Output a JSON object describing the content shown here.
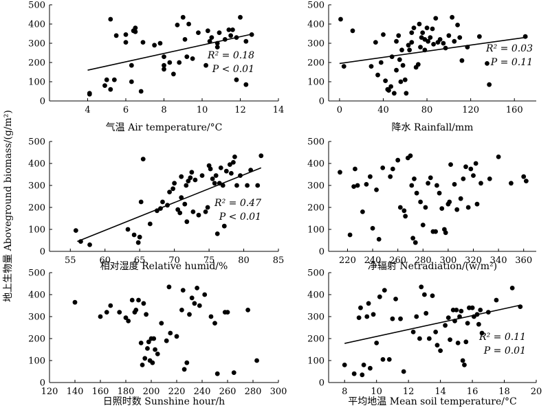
{
  "figure": {
    "ylabel": "地上生物量 Aboveground biomass/(g/m²)"
  },
  "chart_data": [
    {
      "type": "scatter",
      "xlabel": "气温  Air temperature/°C",
      "xlim": [
        2,
        14
      ],
      "ylim": [
        0,
        500
      ],
      "xticks": [
        4,
        6,
        8,
        10,
        12,
        14
      ],
      "yticks": [
        0,
        100,
        200,
        300,
        400,
        500
      ],
      "stats": {
        "r2_label": "R² = 0.18",
        "p_label": "P < 0.01"
      },
      "fit": {
        "x": [
          4.0,
          12.5
        ],
        "y": [
          160,
          345
        ]
      },
      "points": [
        [
          4.1,
          40
        ],
        [
          4.1,
          35
        ],
        [
          4.9,
          80
        ],
        [
          5.0,
          110
        ],
        [
          5.2,
          425
        ],
        [
          5.2,
          60
        ],
        [
          5.4,
          110
        ],
        [
          5.5,
          340
        ],
        [
          6.0,
          305
        ],
        [
          6.0,
          345
        ],
        [
          6.3,
          185
        ],
        [
          6.3,
          100
        ],
        [
          6.4,
          365
        ],
        [
          6.5,
          380
        ],
        [
          6.5,
          360
        ],
        [
          6.8,
          50
        ],
        [
          6.9,
          305
        ],
        [
          7.5,
          290
        ],
        [
          7.8,
          300
        ],
        [
          8.0,
          230
        ],
        [
          8.0,
          185
        ],
        [
          8.0,
          165
        ],
        [
          8.3,
          200
        ],
        [
          8.5,
          140
        ],
        [
          8.7,
          395
        ],
        [
          8.8,
          200
        ],
        [
          9.0,
          435
        ],
        [
          9.1,
          320
        ],
        [
          9.2,
          230
        ],
        [
          9.3,
          400
        ],
        [
          9.5,
          220
        ],
        [
          9.8,
          355
        ],
        [
          10.2,
          185
        ],
        [
          10.3,
          365
        ],
        [
          10.4,
          310
        ],
        [
          10.5,
          330
        ],
        [
          10.8,
          300
        ],
        [
          10.8,
          280
        ],
        [
          10.9,
          355
        ],
        [
          11.2,
          320
        ],
        [
          11.4,
          370
        ],
        [
          11.5,
          340
        ],
        [
          11.6,
          370
        ],
        [
          11.8,
          330
        ],
        [
          11.8,
          110
        ],
        [
          12.0,
          435
        ],
        [
          12.3,
          310
        ],
        [
          12.3,
          85
        ],
        [
          12.6,
          345
        ]
      ]
    },
    {
      "type": "scatter",
      "xlabel": "降水  Rainfall/mm",
      "xlim": [
        -10,
        180
      ],
      "ylim": [
        0,
        500
      ],
      "xticks": [
        0,
        40,
        80,
        120,
        160
      ],
      "yticks": [
        0,
        100,
        200,
        300,
        400,
        500
      ],
      "stats": {
        "r2_label": "R² = 0.03",
        "p_label": "P = 0.11"
      },
      "fit": {
        "x": [
          0,
          172
        ],
        "y": [
          195,
          332
        ]
      },
      "points": [
        [
          1,
          425
        ],
        [
          4,
          180
        ],
        [
          12,
          365
        ],
        [
          29,
          180
        ],
        [
          33,
          305
        ],
        [
          35,
          135
        ],
        [
          38,
          200
        ],
        [
          40,
          345
        ],
        [
          42,
          105
        ],
        [
          44,
          60
        ],
        [
          45,
          55
        ],
        [
          47,
          75
        ],
        [
          48,
          230
        ],
        [
          50,
          40
        ],
        [
          52,
          310
        ],
        [
          52,
          160
        ],
        [
          54,
          340
        ],
        [
          55,
          215
        ],
        [
          56,
          100
        ],
        [
          57,
          265
        ],
        [
          58,
          185
        ],
        [
          60,
          110
        ],
        [
          61,
          40
        ],
        [
          63,
          290
        ],
        [
          64,
          265
        ],
        [
          66,
          355
        ],
        [
          66,
          305
        ],
        [
          68,
          380
        ],
        [
          70,
          175
        ],
        [
          72,
          190
        ],
        [
          73,
          400
        ],
        [
          74,
          280
        ],
        [
          75,
          330
        ],
        [
          76,
          355
        ],
        [
          78,
          320
        ],
        [
          78,
          265
        ],
        [
          80,
          380
        ],
        [
          81,
          310
        ],
        [
          83,
          330
        ],
        [
          85,
          375
        ],
        [
          86,
          295
        ],
        [
          88,
          430
        ],
        [
          90,
          305
        ],
        [
          92,
          320
        ],
        [
          95,
          300
        ],
        [
          97,
          275
        ],
        [
          100,
          340
        ],
        [
          103,
          435
        ],
        [
          105,
          310
        ],
        [
          108,
          395
        ],
        [
          110,
          330
        ],
        [
          112,
          210
        ],
        [
          117,
          280
        ],
        [
          128,
          335
        ],
        [
          135,
          195
        ],
        [
          137,
          85
        ],
        [
          170,
          335
        ]
      ]
    },
    {
      "type": "scatter",
      "xlabel": "相对湿度  Relative humid/%",
      "xlim": [
        52,
        85
      ],
      "ylim": [
        0,
        500
      ],
      "xticks": [
        55,
        60,
        65,
        70,
        75,
        80,
        85
      ],
      "yticks": [
        0,
        100,
        200,
        300,
        400,
        500
      ],
      "stats": {
        "r2_label": "R² = 0.47",
        "p_label": "P < 0.01"
      },
      "fit": {
        "x": [
          56,
          82.5
        ],
        "y": [
          45,
          380
        ]
      },
      "points": [
        [
          55.8,
          95
        ],
        [
          56.5,
          45
        ],
        [
          57.8,
          30
        ],
        [
          63.3,
          100
        ],
        [
          64.2,
          75
        ],
        [
          64.8,
          40
        ],
        [
          65.0,
          65
        ],
        [
          65.2,
          225
        ],
        [
          65.5,
          420
        ],
        [
          66.5,
          125
        ],
        [
          67.5,
          185
        ],
        [
          68.0,
          195
        ],
        [
          68.3,
          225
        ],
        [
          69.0,
          210
        ],
        [
          69.3,
          270
        ],
        [
          69.8,
          285
        ],
        [
          70.0,
          310
        ],
        [
          70.5,
          190
        ],
        [
          70.8,
          175
        ],
        [
          71.0,
          340
        ],
        [
          71.0,
          245
        ],
        [
          71.5,
          215
        ],
        [
          71.7,
          300
        ],
        [
          71.8,
          135
        ],
        [
          72.0,
          320
        ],
        [
          72.3,
          335
        ],
        [
          72.5,
          360
        ],
        [
          72.7,
          180
        ],
        [
          73.0,
          325
        ],
        [
          73.5,
          165
        ],
        [
          74.0,
          345
        ],
        [
          74.5,
          180
        ],
        [
          74.8,
          200
        ],
        [
          75.0,
          390
        ],
        [
          75.2,
          375
        ],
        [
          75.5,
          330
        ],
        [
          75.8,
          310
        ],
        [
          76.0,
          345
        ],
        [
          76.2,
          80
        ],
        [
          76.5,
          310
        ],
        [
          76.7,
          380
        ],
        [
          77.0,
          300
        ],
        [
          77.2,
          115
        ],
        [
          77.5,
          365
        ],
        [
          78.0,
          395
        ],
        [
          78.2,
          355
        ],
        [
          78.5,
          405
        ],
        [
          78.7,
          430
        ],
        [
          79.0,
          300
        ],
        [
          79.5,
          345
        ],
        [
          80.5,
          300
        ],
        [
          81.0,
          370
        ],
        [
          82.0,
          300
        ],
        [
          82.5,
          435
        ]
      ]
    },
    {
      "type": "scatter",
      "xlabel": "净辐射  Netradiation/(w/m²)",
      "xlim": [
        205,
        370
      ],
      "ylim": [
        0,
        500
      ],
      "xticks": [
        220,
        240,
        260,
        280,
        300,
        320,
        340,
        360
      ],
      "yticks": [
        0,
        100,
        200,
        300,
        400,
        500
      ],
      "points": [
        [
          214,
          360
        ],
        [
          222,
          75
        ],
        [
          225,
          295
        ],
        [
          226,
          375
        ],
        [
          228,
          300
        ],
        [
          232,
          180
        ],
        [
          235,
          305
        ],
        [
          238,
          340
        ],
        [
          240,
          105
        ],
        [
          243,
          280
        ],
        [
          245,
          55
        ],
        [
          248,
          380
        ],
        [
          254,
          340
        ],
        [
          256,
          375
        ],
        [
          260,
          415
        ],
        [
          262,
          200
        ],
        [
          265,
          185
        ],
        [
          266,
          160
        ],
        [
          268,
          425
        ],
        [
          270,
          435
        ],
        [
          271,
          300
        ],
        [
          272,
          60
        ],
        [
          273,
          330
        ],
        [
          274,
          40
        ],
        [
          275,
          265
        ],
        [
          278,
          225
        ],
        [
          280,
          120
        ],
        [
          282,
          200
        ],
        [
          284,
          310
        ],
        [
          286,
          335
        ],
        [
          288,
          90
        ],
        [
          290,
          90
        ],
        [
          291,
          300
        ],
        [
          293,
          265
        ],
        [
          295,
          195
        ],
        [
          297,
          100
        ],
        [
          298,
          85
        ],
        [
          300,
          215
        ],
        [
          301,
          225
        ],
        [
          302,
          395
        ],
        [
          305,
          305
        ],
        [
          307,
          190
        ],
        [
          310,
          240
        ],
        [
          312,
          330
        ],
        [
          314,
          385
        ],
        [
          316,
          200
        ],
        [
          318,
          375
        ],
        [
          320,
          345
        ],
        [
          322,
          400
        ],
        [
          323,
          215
        ],
        [
          326,
          310
        ],
        [
          333,
          330
        ],
        [
          340,
          430
        ],
        [
          350,
          310
        ],
        [
          360,
          340
        ],
        [
          362,
          320
        ]
      ]
    },
    {
      "type": "scatter",
      "xlabel": "日照时数  Sunshine hour/h",
      "xlim": [
        120,
        300
      ],
      "ylim": [
        0,
        500
      ],
      "xticks": [
        120,
        140,
        160,
        180,
        200,
        220,
        240,
        260,
        280,
        300
      ],
      "yticks": [
        0,
        100,
        200,
        300,
        400,
        500
      ],
      "points": [
        [
          140,
          365
        ],
        [
          160,
          300
        ],
        [
          165,
          320
        ],
        [
          168,
          350
        ],
        [
          175,
          320
        ],
        [
          180,
          295
        ],
        [
          182,
          280
        ],
        [
          185,
          375
        ],
        [
          187,
          320
        ],
        [
          188,
          330
        ],
        [
          190,
          375
        ],
        [
          192,
          180
        ],
        [
          193,
          80
        ],
        [
          194,
          360
        ],
        [
          195,
          110
        ],
        [
          196,
          310
        ],
        [
          197,
          155
        ],
        [
          198,
          185
        ],
        [
          199,
          100
        ],
        [
          200,
          200
        ],
        [
          201,
          90
        ],
        [
          202,
          200
        ],
        [
          203,
          150
        ],
        [
          205,
          130
        ],
        [
          208,
          270
        ],
        [
          212,
          190
        ],
        [
          214,
          435
        ],
        [
          215,
          225
        ],
        [
          220,
          210
        ],
        [
          224,
          330
        ],
        [
          225,
          420
        ],
        [
          226,
          60
        ],
        [
          228,
          90
        ],
        [
          230,
          310
        ],
        [
          232,
          385
        ],
        [
          234,
          360
        ],
        [
          236,
          430
        ],
        [
          238,
          350
        ],
        [
          242,
          400
        ],
        [
          247,
          300
        ],
        [
          250,
          270
        ],
        [
          252,
          40
        ],
        [
          258,
          320
        ],
        [
          260,
          320
        ],
        [
          265,
          45
        ],
        [
          276,
          330
        ],
        [
          283,
          100
        ]
      ]
    },
    {
      "type": "scatter",
      "xlabel": "平均地温  Mean soil temperature/°C",
      "xlim": [
        7,
        20
      ],
      "ylim": [
        0,
        500
      ],
      "xticks": [
        8,
        10,
        12,
        14,
        16,
        18,
        20
      ],
      "yticks": [
        0,
        100,
        200,
        300,
        400,
        500
      ],
      "stats": {
        "r2_label": "R² = 0.11",
        "p_label": "P = 0.01"
      },
      "fit": {
        "x": [
          8.0,
          19.0
        ],
        "y": [
          178,
          352
        ]
      },
      "points": [
        [
          8.0,
          80
        ],
        [
          8.6,
          40
        ],
        [
          8.9,
          295
        ],
        [
          9.0,
          340
        ],
        [
          9.1,
          35
        ],
        [
          9.2,
          80
        ],
        [
          9.4,
          300
        ],
        [
          9.5,
          360
        ],
        [
          9.6,
          65
        ],
        [
          9.8,
          310
        ],
        [
          10.0,
          180
        ],
        [
          10.2,
          390
        ],
        [
          10.4,
          105
        ],
        [
          10.5,
          420
        ],
        [
          10.8,
          105
        ],
        [
          11.0,
          290
        ],
        [
          11.2,
          380
        ],
        [
          11.5,
          290
        ],
        [
          11.7,
          50
        ],
        [
          12.3,
          230
        ],
        [
          12.5,
          300
        ],
        [
          12.7,
          200
        ],
        [
          12.8,
          435
        ],
        [
          13.0,
          400
        ],
        [
          13.1,
          315
        ],
        [
          13.3,
          200
        ],
        [
          13.5,
          395
        ],
        [
          13.7,
          230
        ],
        [
          13.8,
          170
        ],
        [
          14.0,
          145
        ],
        [
          14.3,
          260
        ],
        [
          14.5,
          295
        ],
        [
          14.6,
          195
        ],
        [
          14.8,
          330
        ],
        [
          14.9,
          280
        ],
        [
          15.0,
          330
        ],
        [
          15.1,
          180
        ],
        [
          15.2,
          300
        ],
        [
          15.3,
          325
        ],
        [
          15.4,
          100
        ],
        [
          15.5,
          80
        ],
        [
          15.6,
          185
        ],
        [
          15.7,
          270
        ],
        [
          15.8,
          340
        ],
        [
          16.0,
          340
        ],
        [
          16.1,
          300
        ],
        [
          16.3,
          310
        ],
        [
          16.4,
          265
        ],
        [
          16.5,
          330
        ],
        [
          16.6,
          225
        ],
        [
          17.0,
          320
        ],
        [
          17.5,
          375
        ],
        [
          18.5,
          430
        ],
        [
          19.0,
          345
        ]
      ]
    }
  ]
}
